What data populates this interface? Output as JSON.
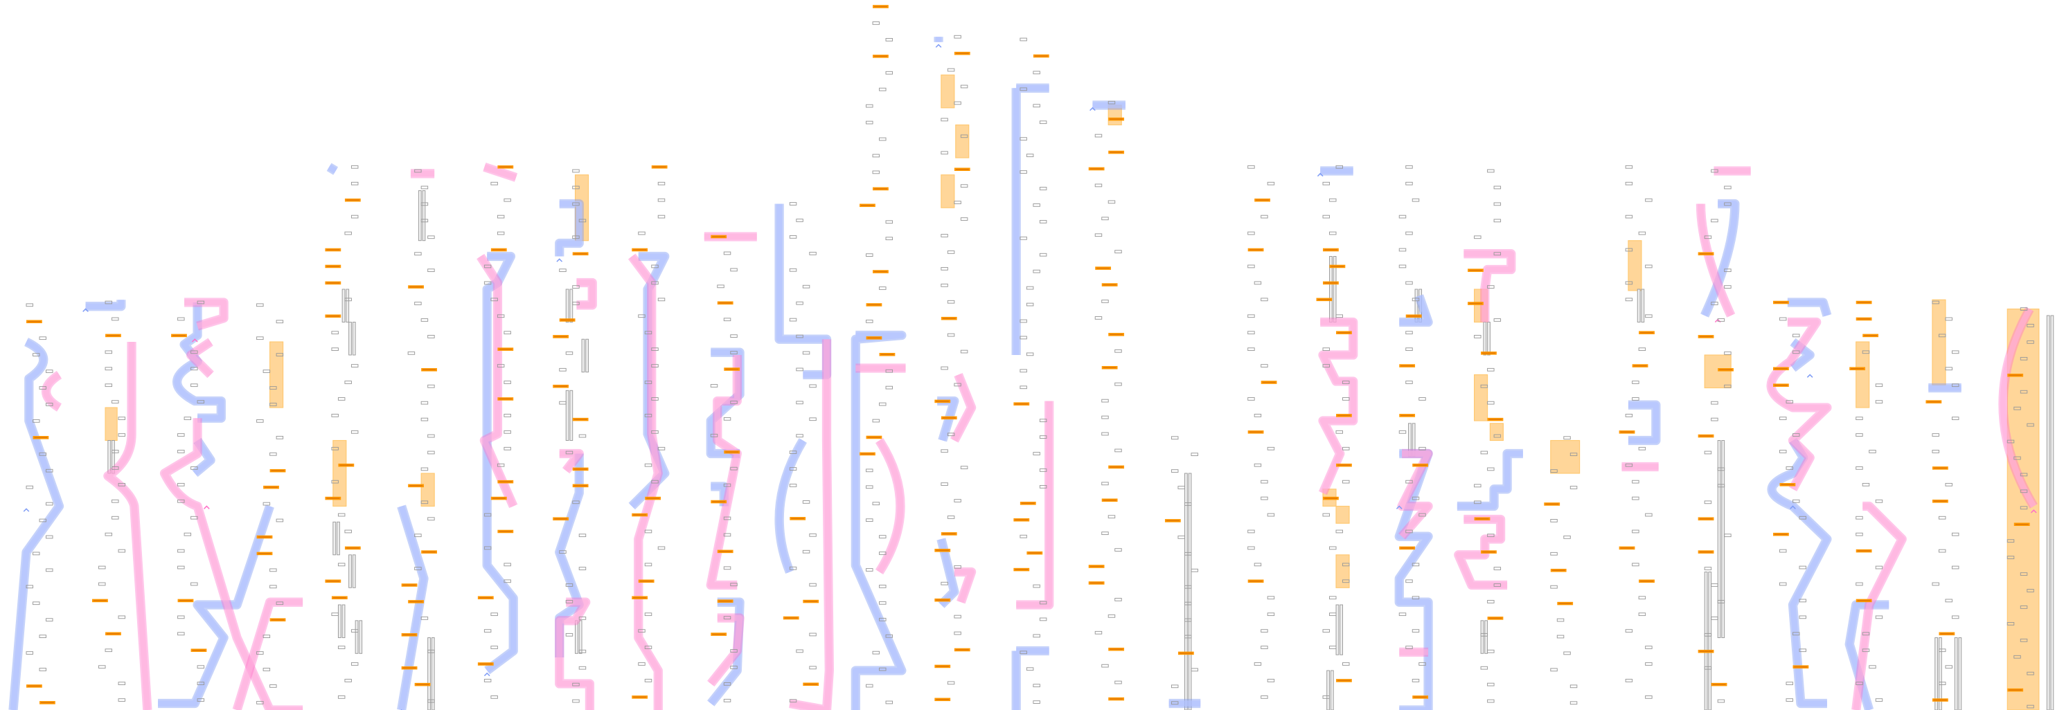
{
  "diagram": {
    "colors": {
      "background": "#ffffff",
      "blue_ribbon": "#7f9cf5",
      "blue_fill": "#b3c3ff",
      "pink_ribbon": "#ff6ec7",
      "pink_fill": "#ffb0dd",
      "orange_bar": "#ff9900",
      "orange_bar_core": "#e07800",
      "orange_block": "#ffd699",
      "grey_tick": "#999999"
    },
    "icons": [
      "caret-up-marker"
    ]
  }
}
